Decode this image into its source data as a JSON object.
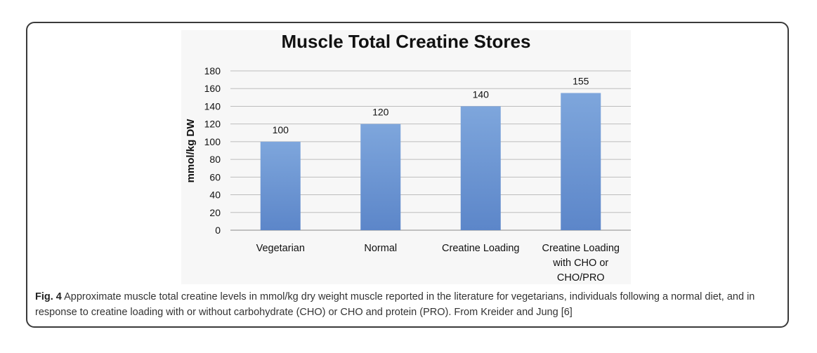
{
  "chart_data": {
    "type": "bar",
    "title": "Muscle Total Creatine Stores",
    "xlabel": "",
    "ylabel": "mmol/kg DW",
    "ylim": [
      0,
      180
    ],
    "yticks": [
      0,
      20,
      40,
      60,
      80,
      100,
      120,
      140,
      160,
      180
    ],
    "categories": [
      [
        "Vegetarian"
      ],
      [
        "Normal"
      ],
      [
        "Creatine Loading"
      ],
      [
        "Creatine Loading",
        "with CHO or",
        "CHO/PRO"
      ]
    ],
    "values": [
      100,
      120,
      140,
      155
    ],
    "data_labels": [
      "100",
      "120",
      "140",
      "155"
    ],
    "grid": true,
    "colors": {
      "bar_top": "#7ea6dc",
      "bar_bottom": "#5c86c9",
      "grid": "#bdbdbd"
    }
  },
  "caption": {
    "label": "Fig. 4",
    "text": " Approximate muscle total creatine levels in mmol/kg dry weight muscle reported in the literature for vegetarians, individuals following a normal diet, and in response to creatine loading with or without carbohydrate (CHO) or CHO and protein (PRO). From Kreider and Jung [6]"
  }
}
